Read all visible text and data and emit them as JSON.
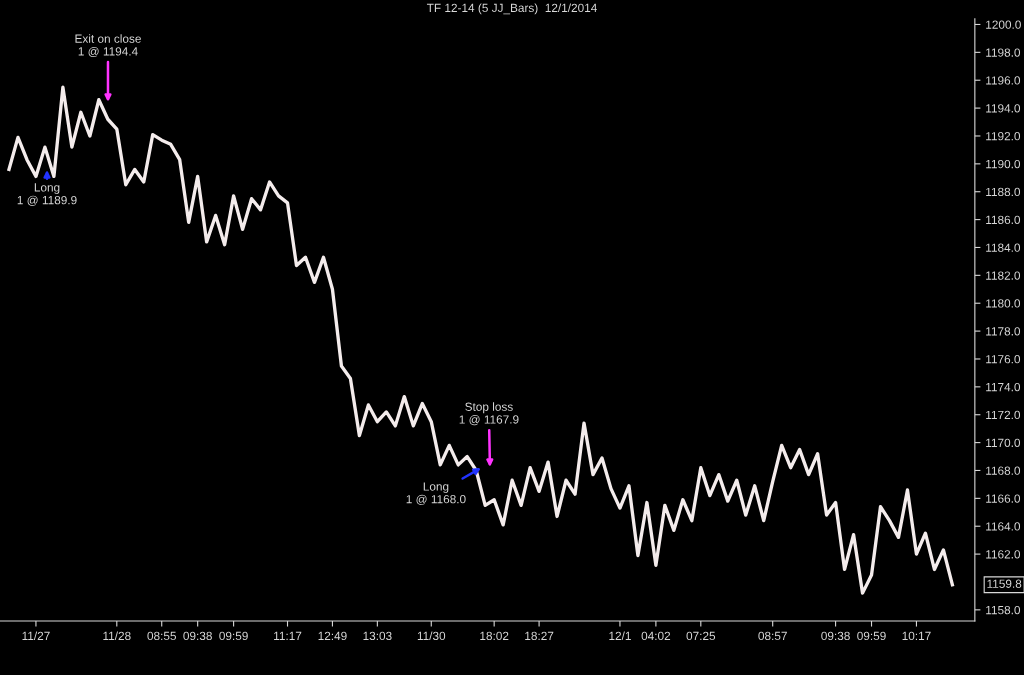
{
  "chart_data": {
    "type": "line",
    "title": "TF 12-14 (5 JJ_Bars)  12/1/2014",
    "categories": [
      null,
      null,
      null,
      "11/27",
      null,
      null,
      null,
      null,
      null,
      null,
      null,
      null,
      "11/28",
      null,
      null,
      null,
      null,
      "08:55",
      null,
      null,
      null,
      "09:38",
      null,
      null,
      null,
      "09:59",
      null,
      null,
      null,
      null,
      null,
      "11:17",
      null,
      null,
      null,
      null,
      "12:49",
      null,
      null,
      null,
      null,
      "13:03",
      null,
      null,
      null,
      null,
      null,
      "11/30",
      null,
      null,
      null,
      null,
      null,
      null,
      "18:02",
      null,
      null,
      null,
      null,
      "18:27",
      null,
      null,
      null,
      null,
      null,
      null,
      null,
      null,
      "12/1",
      null,
      null,
      null,
      "04:02",
      null,
      null,
      null,
      null,
      "07:25",
      null,
      null,
      null,
      null,
      null,
      null,
      null,
      "08:57",
      null,
      null,
      null,
      null,
      null,
      null,
      "09:38",
      null,
      null,
      null,
      "09:59",
      null,
      null,
      null,
      null,
      "10:17",
      null,
      null,
      null,
      null
    ],
    "series": [
      {
        "color": "#f4ecec",
        "values": [
          1189.6,
          1191.9,
          1190.3,
          1189.1,
          1191.2,
          1189.1,
          1195.5,
          1191.2,
          1193.7,
          1192.0,
          1194.6,
          1193.2,
          1192.5,
          1188.5,
          1189.6,
          1188.7,
          1192.1,
          1191.7,
          1191.4,
          1190.3,
          1185.8,
          1189.1,
          1184.4,
          1186.3,
          1184.2,
          1187.7,
          1185.3,
          1187.5,
          1186.7,
          1188.7,
          1187.7,
          1187.2,
          1182.7,
          1183.3,
          1181.5,
          1183.3,
          1181.0,
          1175.5,
          1174.6,
          1170.5,
          1172.7,
          1171.5,
          1172.2,
          1171.2,
          1173.3,
          1171.2,
          1172.8,
          1171.5,
          1168.4,
          1169.8,
          1168.4,
          1169.0,
          1168.0,
          1165.5,
          1165.9,
          1164.1,
          1167.3,
          1165.5,
          1168.2,
          1166.5,
          1168.6,
          1164.7,
          1167.3,
          1166.3,
          1171.4,
          1167.7,
          1168.9,
          1166.7,
          1165.3,
          1166.9,
          1161.9,
          1165.7,
          1161.2,
          1165.5,
          1163.7,
          1165.9,
          1164.4,
          1168.2,
          1166.2,
          1167.7,
          1165.8,
          1167.3,
          1164.8,
          1166.9,
          1164.4,
          1167.2,
          1169.8,
          1168.2,
          1169.5,
          1167.7,
          1169.2,
          1164.8,
          1165.7,
          1160.9,
          1163.4,
          1159.2,
          1160.5,
          1165.4,
          1164.4,
          1163.2,
          1166.6,
          1162.0,
          1163.5,
          1160.9,
          1162.3,
          1159.8
        ]
      }
    ],
    "ylim": [
      1157.2,
      1200.4
    ],
    "yticks": [
      {
        "value": 1158,
        "label": "1158.0"
      },
      {
        "value": 1162,
        "label": "1162.0"
      },
      {
        "value": 1164,
        "label": "1164.0"
      },
      {
        "value": 1166,
        "label": "1166.0"
      },
      {
        "value": 1168,
        "label": "1168.0"
      },
      {
        "value": 1170,
        "label": "1170.0"
      },
      {
        "value": 1172,
        "label": "1172.0"
      },
      {
        "value": 1174,
        "label": "1174.0"
      },
      {
        "value": 1176,
        "label": "1176.0"
      },
      {
        "value": 1178,
        "label": "1178.0"
      },
      {
        "value": 1180,
        "label": "1180.0"
      },
      {
        "value": 1182,
        "label": "1182.0"
      },
      {
        "value": 1184,
        "label": "1184.0"
      },
      {
        "value": 1186,
        "label": "1186.0"
      },
      {
        "value": 1188,
        "label": "1188.0"
      },
      {
        "value": 1190,
        "label": "1190.0"
      },
      {
        "value": 1192,
        "label": "1192.0"
      },
      {
        "value": 1194,
        "label": "1194.0"
      },
      {
        "value": 1196,
        "label": "1196.0"
      },
      {
        "value": 1198,
        "label": "1198.0"
      },
      {
        "value": 1200,
        "label": "1200.0"
      }
    ],
    "grid": false,
    "annotations": [
      "Exit on close\n1 @ 1194.4",
      "Long\n1 @ 1189.9",
      "Stop loss\n1 @ 1167.9",
      "Long\n1 @ 1168.0",
      "1159.8"
    ]
  }
}
